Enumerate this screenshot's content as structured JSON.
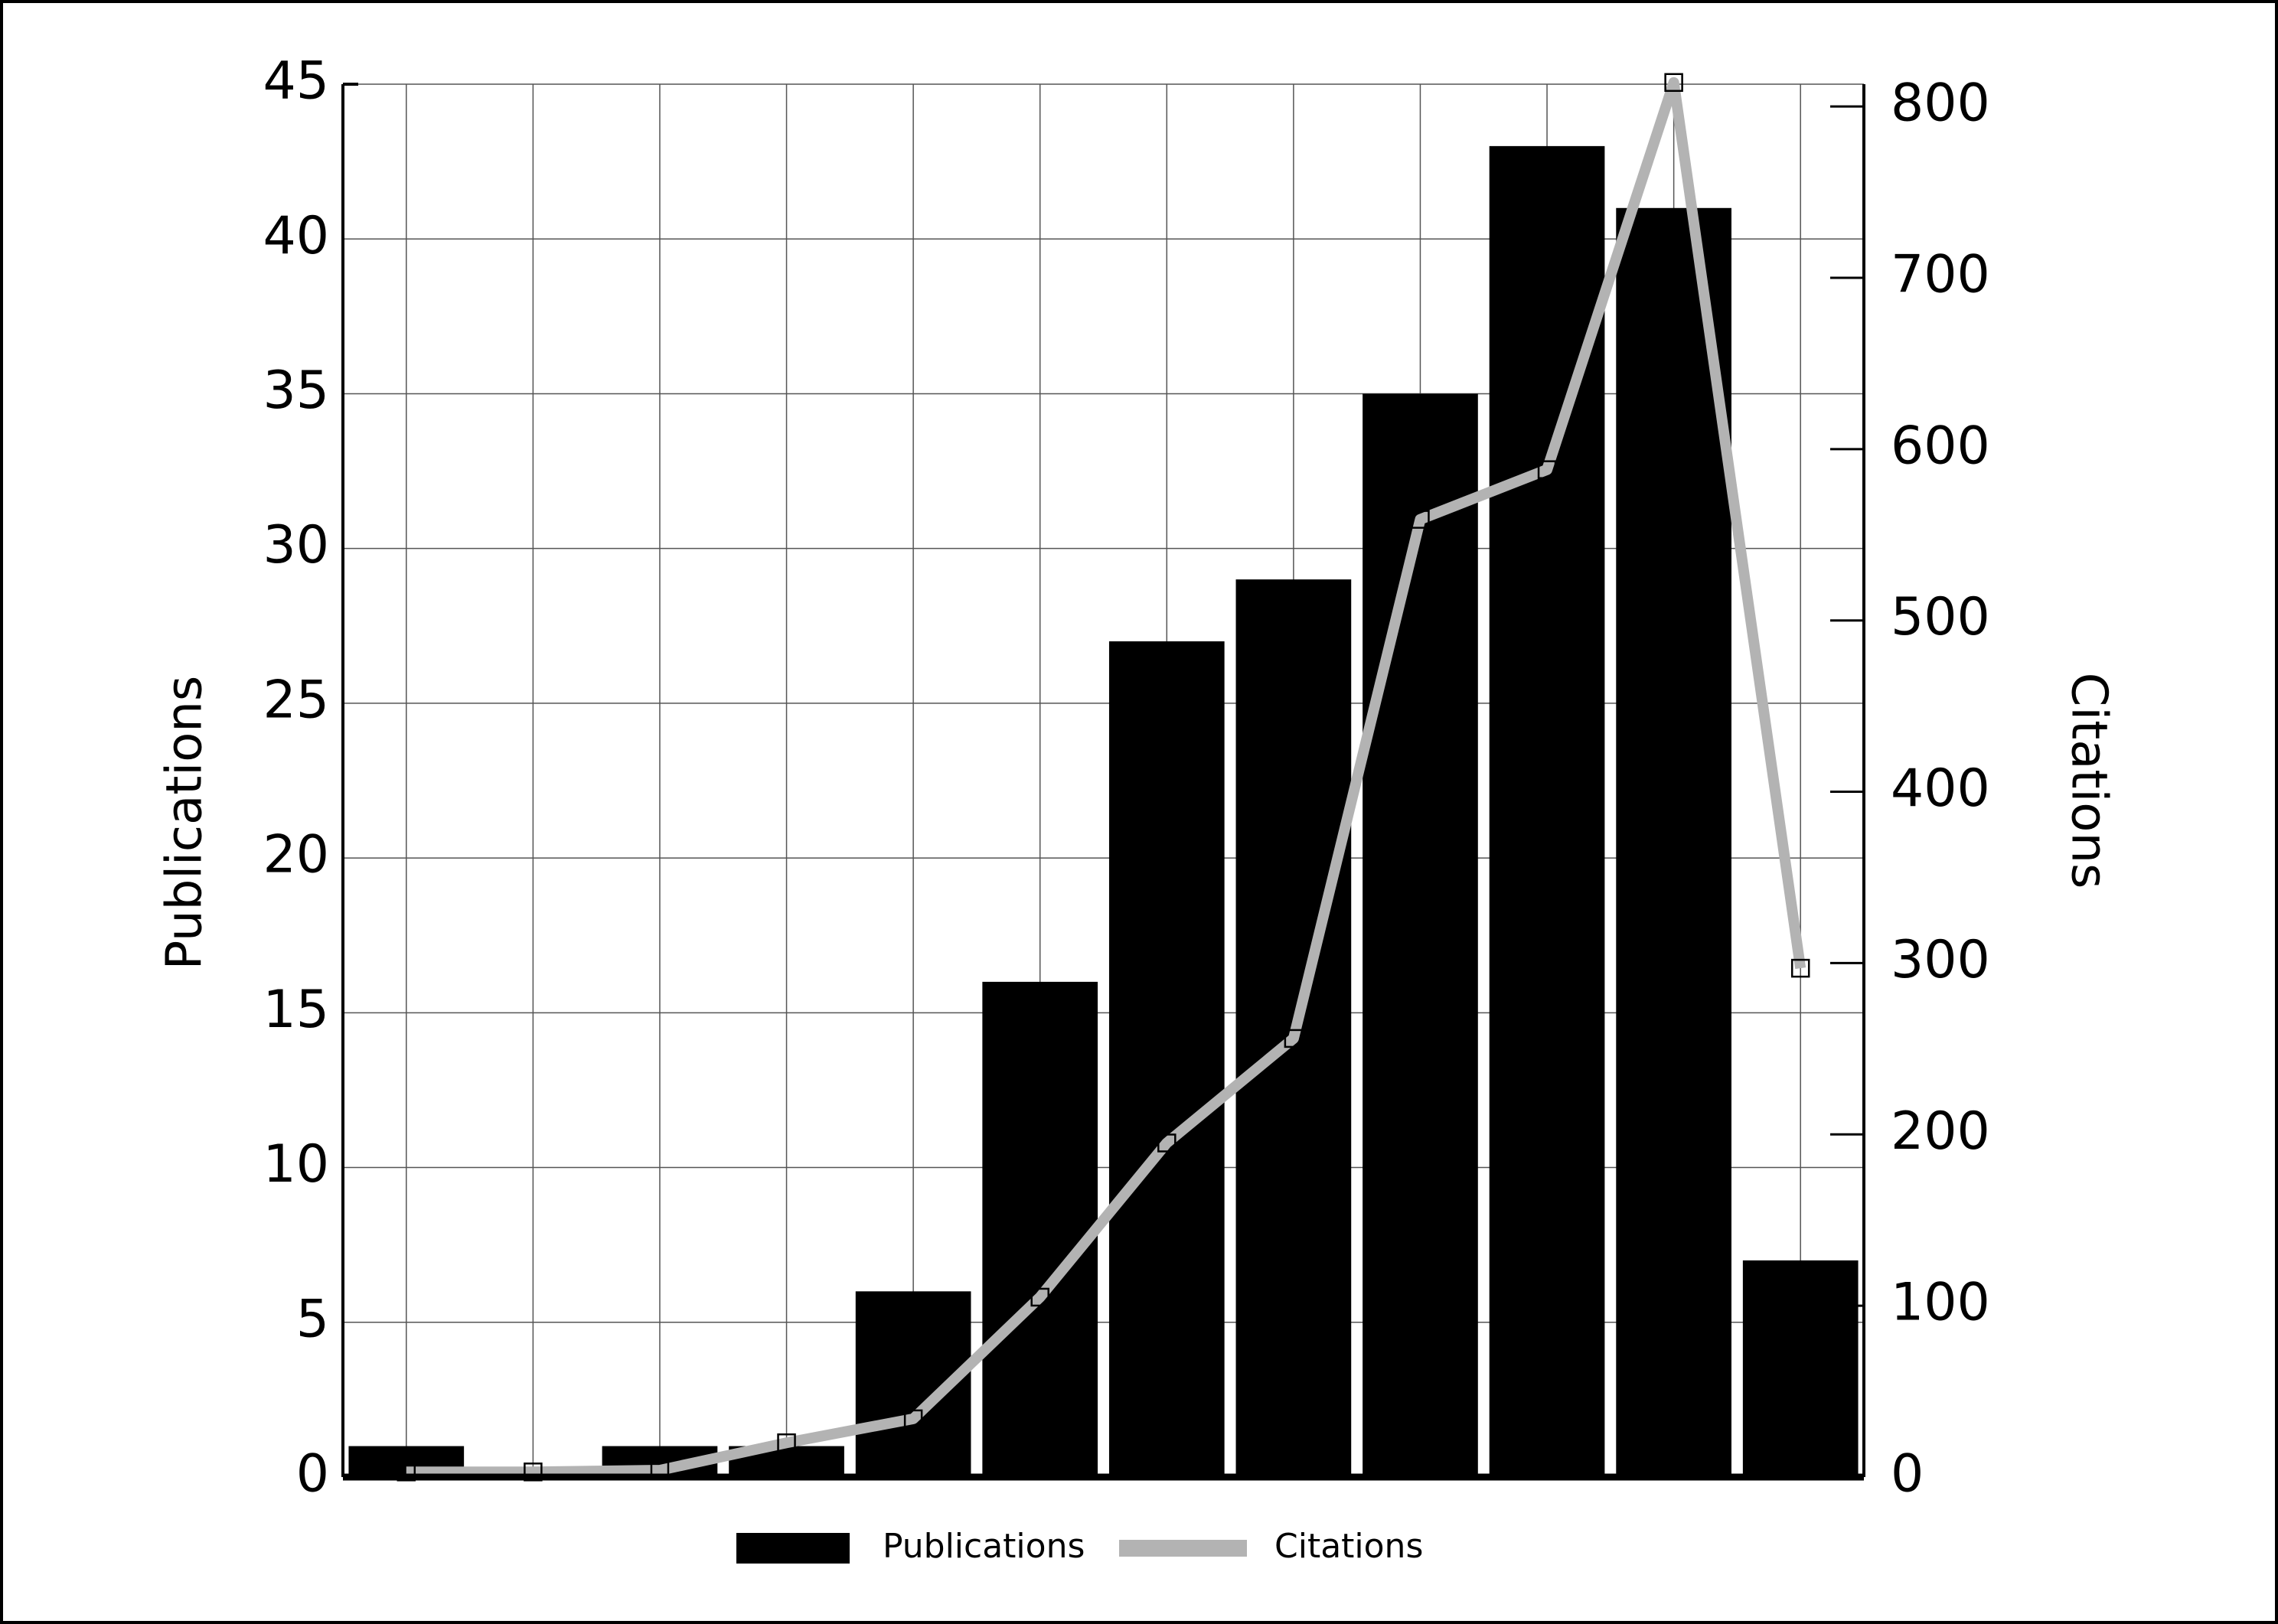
{
  "chart_data": {
    "type": "bar-line",
    "categories": [
      null,
      null,
      null,
      null,
      null,
      null,
      null,
      null,
      null,
      null,
      null,
      null
    ],
    "ylabel": "Publications",
    "y2label": "Citations",
    "series": [
      {
        "name": "Publications",
        "type": "bar",
        "color": "#000000",
        "values": [
          1,
          0,
          1,
          1,
          6,
          16,
          27,
          29,
          35,
          43,
          41,
          7
        ]
      },
      {
        "name": "Citations",
        "type": "line",
        "axis": "y2",
        "color": "#b3b3b3",
        "values": [
          3,
          3,
          4,
          20,
          34,
          105,
          195,
          256,
          559,
          588,
          814,
          297
        ]
      }
    ],
    "ylim": [
      0,
      45
    ],
    "yticks": [
      0,
      5,
      10,
      15,
      20,
      25,
      30,
      35,
      40,
      45
    ],
    "y2lim": [
      0,
      813
    ],
    "y2ticks": [
      0,
      100,
      200,
      300,
      400,
      500,
      600,
      700,
      800
    ],
    "grid": true,
    "legend": "bottom"
  }
}
